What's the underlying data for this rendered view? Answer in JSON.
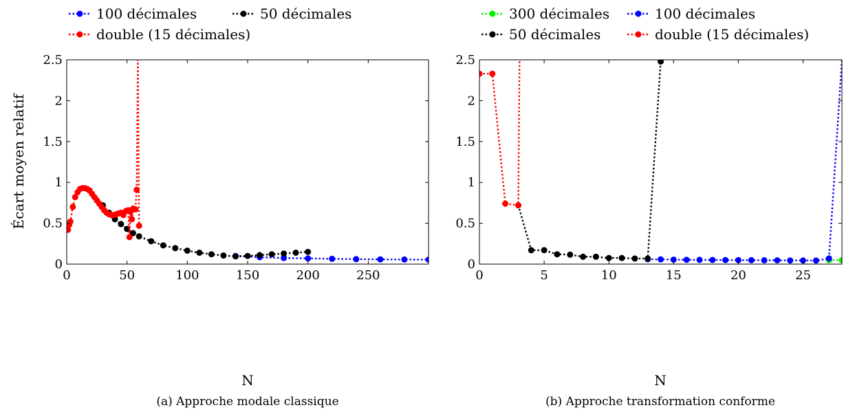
{
  "chart_data": [
    {
      "type": "line",
      "caption": "(a) Approche modale classique",
      "xlabel": "N",
      "ylabel": "Écart moyen relatif",
      "xlim": [
        0,
        300
      ],
      "ylim": [
        0,
        2.5
      ],
      "xticks": [
        0,
        50,
        100,
        150,
        200,
        250
      ],
      "yticks": [
        0,
        0.5,
        1,
        1.5,
        2,
        2.5
      ],
      "xtick_labels": [
        "0",
        "50",
        "100",
        "150",
        "200",
        "250"
      ],
      "ytick_labels": [
        "0",
        "0.5",
        "1",
        "1.5",
        "2",
        "2.5"
      ],
      "legend_position": "top-left, above plot",
      "grid": false,
      "series": [
        {
          "name": "100 décimales",
          "color": "#0000ff",
          "style": "dotted-marker",
          "points": [
            [
              140,
              0.1
            ],
            [
              160,
              0.085
            ],
            [
              180,
              0.075
            ],
            [
              200,
              0.07
            ],
            [
              220,
              0.065
            ],
            [
              240,
              0.061
            ],
            [
              260,
              0.058
            ],
            [
              280,
              0.056
            ],
            [
              300,
              0.055
            ]
          ]
        },
        {
          "name": "50 décimales",
          "color": "#000000",
          "style": "dotted-marker",
          "points": [
            [
              30,
              0.72
            ],
            [
              35,
              0.63
            ],
            [
              40,
              0.55
            ],
            [
              45,
              0.49
            ],
            [
              50,
              0.43
            ],
            [
              55,
              0.38
            ],
            [
              60,
              0.34
            ],
            [
              70,
              0.28
            ],
            [
              80,
              0.23
            ],
            [
              90,
              0.195
            ],
            [
              100,
              0.165
            ],
            [
              110,
              0.14
            ],
            [
              120,
              0.12
            ],
            [
              130,
              0.105
            ],
            [
              140,
              0.095
            ],
            [
              150,
              0.1
            ],
            [
              160,
              0.11
            ],
            [
              170,
              0.12
            ],
            [
              180,
              0.13
            ],
            [
              190,
              0.14
            ],
            [
              200,
              0.15
            ]
          ]
        },
        {
          "name": "double (15 décimales)",
          "color": "#ff0000",
          "style": "dotted-marker",
          "points": [
            [
              1,
              0.42
            ],
            [
              2,
              0.48
            ],
            [
              3,
              0.52
            ],
            [
              5,
              0.7
            ],
            [
              7,
              0.82
            ],
            [
              9,
              0.88
            ],
            [
              11,
              0.92
            ],
            [
              13,
              0.93
            ],
            [
              15,
              0.93
            ],
            [
              17,
              0.92
            ],
            [
              19,
              0.9
            ],
            [
              21,
              0.86
            ],
            [
              23,
              0.82
            ],
            [
              25,
              0.78
            ],
            [
              27,
              0.74
            ],
            [
              29,
              0.7
            ],
            [
              31,
              0.66
            ],
            [
              33,
              0.63
            ],
            [
              35,
              0.61
            ],
            [
              37,
              0.6
            ],
            [
              39,
              0.6
            ],
            [
              41,
              0.61
            ],
            [
              43,
              0.62
            ],
            [
              45,
              0.63
            ],
            [
              47,
              0.6
            ],
            [
              49,
              0.65
            ],
            [
              51,
              0.66
            ],
            [
              52,
              0.33
            ],
            [
              53,
              0.64
            ],
            [
              54,
              0.55
            ],
            [
              55,
              0.68
            ],
            [
              57,
              0.67
            ],
            [
              58,
              0.91
            ],
            [
              59,
              2.5
            ],
            [
              60,
              0.47
            ]
          ]
        }
      ]
    },
    {
      "type": "line",
      "caption": "(b) Approche transformation conforme",
      "xlabel": "N",
      "ylabel": "",
      "xlim": [
        0,
        28
      ],
      "ylim": [
        0,
        2.5
      ],
      "xticks": [
        0,
        5,
        10,
        15,
        20,
        25
      ],
      "yticks": [
        0,
        0.5,
        1,
        1.5,
        2,
        2.5
      ],
      "xtick_labels": [
        "0",
        "5",
        "10",
        "15",
        "20",
        "25"
      ],
      "ytick_labels": [
        "0",
        "0.5",
        "1",
        "1.5",
        "2",
        "2.5"
      ],
      "legend_position": "top-left, above plot",
      "grid": false,
      "series": [
        {
          "name": "300 décimales",
          "color": "#00ee00",
          "style": "dotted-marker",
          "points": [
            [
              27,
              0.05
            ],
            [
              28,
              0.048
            ]
          ]
        },
        {
          "name": "100 décimales",
          "color": "#0000ff",
          "style": "dotted-marker",
          "points": [
            [
              13,
              0.06
            ],
            [
              14,
              0.058
            ],
            [
              15,
              0.055
            ],
            [
              16,
              0.053
            ],
            [
              17,
              0.052
            ],
            [
              18,
              0.051
            ],
            [
              19,
              0.05
            ],
            [
              20,
              0.049
            ],
            [
              21,
              0.048
            ],
            [
              22,
              0.047
            ],
            [
              23,
              0.046
            ],
            [
              24,
              0.045
            ],
            [
              25,
              0.045
            ],
            [
              26,
              0.044
            ],
            [
              27,
              0.07
            ],
            [
              28,
              2.5
            ]
          ]
        },
        {
          "name": "50 décimales",
          "color": "#000000",
          "style": "dotted-marker",
          "points": [
            [
              3,
              0.72
            ],
            [
              4,
              0.17
            ],
            [
              5,
              0.17
            ],
            [
              6,
              0.12
            ],
            [
              7,
              0.115
            ],
            [
              8,
              0.09
            ],
            [
              9,
              0.09
            ],
            [
              10,
              0.075
            ],
            [
              11,
              0.075
            ],
            [
              12,
              0.068
            ],
            [
              13,
              0.067
            ],
            [
              14,
              2.48
            ]
          ]
        },
        {
          "name": "double (15 décimales)",
          "color": "#ff0000",
          "style": "dotted-marker",
          "points": [
            [
              0,
              2.33
            ],
            [
              1,
              2.33
            ],
            [
              2,
              0.74
            ],
            [
              3,
              0.72
            ],
            [
              3.1,
              2.5
            ]
          ]
        }
      ]
    }
  ]
}
